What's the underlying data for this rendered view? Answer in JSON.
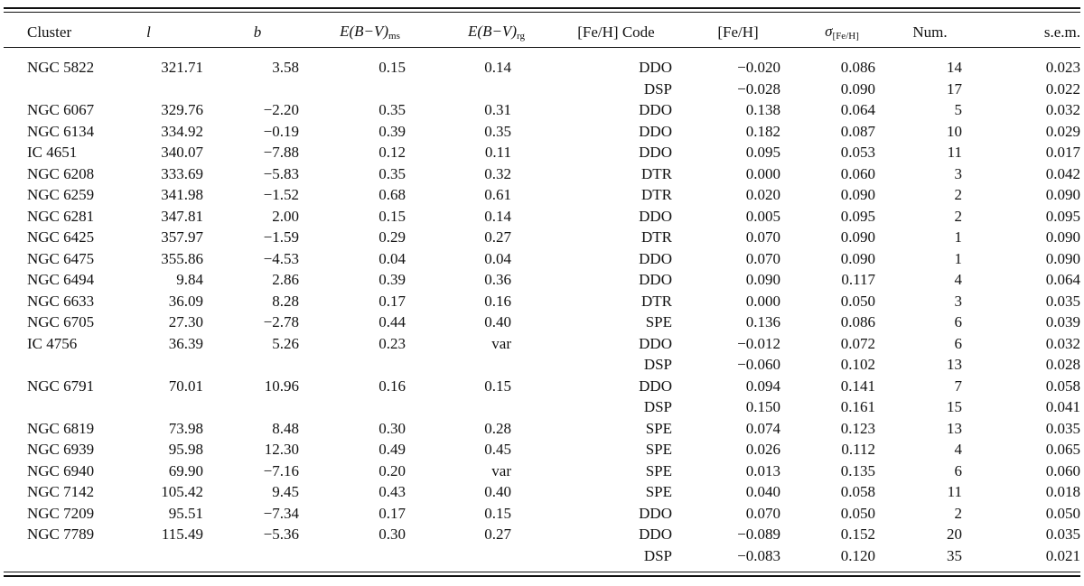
{
  "headers": {
    "cluster": "Cluster",
    "l": "l",
    "b": "b",
    "ebv_ms_main": "E(B−V)",
    "ebv_ms_sub": "ms",
    "ebv_rg_main": "E(B−V)",
    "ebv_rg_sub": "rg",
    "feh_code": "[Fe/H] Code",
    "feh": "[Fe/H]",
    "sigma_main": "σ",
    "sigma_sub": "[Fe/H]",
    "num": "Num.",
    "sem": "s.e.m."
  },
  "rows": [
    {
      "cluster": "NGC 5822",
      "l": "321.71",
      "b": "3.58",
      "ebv_ms": "0.15",
      "ebv_rg": "0.14",
      "code": "DDO",
      "feh": "−0.020",
      "sigma": "0.086",
      "num": "14",
      "sem": "0.023"
    },
    {
      "cluster": "",
      "l": "",
      "b": "",
      "ebv_ms": "",
      "ebv_rg": "",
      "code": "DSP",
      "feh": "−0.028",
      "sigma": "0.090",
      "num": "17",
      "sem": "0.022"
    },
    {
      "cluster": "NGC 6067",
      "l": "329.76",
      "b": "−2.20",
      "ebv_ms": "0.35",
      "ebv_rg": "0.31",
      "code": "DDO",
      "feh": "0.138",
      "sigma": "0.064",
      "num": "5",
      "sem": "0.032"
    },
    {
      "cluster": "NGC 6134",
      "l": "334.92",
      "b": "−0.19",
      "ebv_ms": "0.39",
      "ebv_rg": "0.35",
      "code": "DDO",
      "feh": "0.182",
      "sigma": "0.087",
      "num": "10",
      "sem": "0.029"
    },
    {
      "cluster": "IC 4651",
      "l": "340.07",
      "b": "−7.88",
      "ebv_ms": "0.12",
      "ebv_rg": "0.11",
      "code": "DDO",
      "feh": "0.095",
      "sigma": "0.053",
      "num": "11",
      "sem": "0.017"
    },
    {
      "cluster": "NGC 6208",
      "l": "333.69",
      "b": "−5.83",
      "ebv_ms": "0.35",
      "ebv_rg": "0.32",
      "code": "DTR",
      "feh": "0.000",
      "sigma": "0.060",
      "num": "3",
      "sem": "0.042"
    },
    {
      "cluster": "NGC 6259",
      "l": "341.98",
      "b": "−1.52",
      "ebv_ms": "0.68",
      "ebv_rg": "0.61",
      "code": "DTR",
      "feh": "0.020",
      "sigma": "0.090",
      "num": "2",
      "sem": "0.090"
    },
    {
      "cluster": "NGC 6281",
      "l": "347.81",
      "b": "2.00",
      "ebv_ms": "0.15",
      "ebv_rg": "0.14",
      "code": "DDO",
      "feh": "0.005",
      "sigma": "0.095",
      "num": "2",
      "sem": "0.095"
    },
    {
      "cluster": "NGC 6425",
      "l": "357.97",
      "b": "−1.59",
      "ebv_ms": "0.29",
      "ebv_rg": "0.27",
      "code": "DTR",
      "feh": "0.070",
      "sigma": "0.090",
      "num": "1",
      "sem": "0.090"
    },
    {
      "cluster": "NGC 6475",
      "l": "355.86",
      "b": "−4.53",
      "ebv_ms": "0.04",
      "ebv_rg": "0.04",
      "code": "DDO",
      "feh": "0.070",
      "sigma": "0.090",
      "num": "1",
      "sem": "0.090"
    },
    {
      "cluster": "NGC 6494",
      "l": "9.84",
      "b": "2.86",
      "ebv_ms": "0.39",
      "ebv_rg": "0.36",
      "code": "DDO",
      "feh": "0.090",
      "sigma": "0.117",
      "num": "4",
      "sem": "0.064"
    },
    {
      "cluster": "NGC 6633",
      "l": "36.09",
      "b": "8.28",
      "ebv_ms": "0.17",
      "ebv_rg": "0.16",
      "code": "DTR",
      "feh": "0.000",
      "sigma": "0.050",
      "num": "3",
      "sem": "0.035"
    },
    {
      "cluster": "NGC 6705",
      "l": "27.30",
      "b": "−2.78",
      "ebv_ms": "0.44",
      "ebv_rg": "0.40",
      "code": "SPE",
      "feh": "0.136",
      "sigma": "0.086",
      "num": "6",
      "sem": "0.039"
    },
    {
      "cluster": "IC 4756",
      "l": "36.39",
      "b": "5.26",
      "ebv_ms": "0.23",
      "ebv_rg": "var",
      "code": "DDO",
      "feh": "−0.012",
      "sigma": "0.072",
      "num": "6",
      "sem": "0.032"
    },
    {
      "cluster": "",
      "l": "",
      "b": "",
      "ebv_ms": "",
      "ebv_rg": "",
      "code": "DSP",
      "feh": "−0.060",
      "sigma": "0.102",
      "num": "13",
      "sem": "0.028"
    },
    {
      "cluster": "NGC 6791",
      "l": "70.01",
      "b": "10.96",
      "ebv_ms": "0.16",
      "ebv_rg": "0.15",
      "code": "DDO",
      "feh": "0.094",
      "sigma": "0.141",
      "num": "7",
      "sem": "0.058"
    },
    {
      "cluster": "",
      "l": "",
      "b": "",
      "ebv_ms": "",
      "ebv_rg": "",
      "code": "DSP",
      "feh": "0.150",
      "sigma": "0.161",
      "num": "15",
      "sem": "0.041"
    },
    {
      "cluster": "NGC 6819",
      "l": "73.98",
      "b": "8.48",
      "ebv_ms": "0.30",
      "ebv_rg": "0.28",
      "code": "SPE",
      "feh": "0.074",
      "sigma": "0.123",
      "num": "13",
      "sem": "0.035"
    },
    {
      "cluster": "NGC 6939",
      "l": "95.98",
      "b": "12.30",
      "ebv_ms": "0.49",
      "ebv_rg": "0.45",
      "code": "SPE",
      "feh": "0.026",
      "sigma": "0.112",
      "num": "4",
      "sem": "0.065"
    },
    {
      "cluster": "NGC 6940",
      "l": "69.90",
      "b": "−7.16",
      "ebv_ms": "0.20",
      "ebv_rg": "var",
      "code": "SPE",
      "feh": "0.013",
      "sigma": "0.135",
      "num": "6",
      "sem": "0.060"
    },
    {
      "cluster": "NGC 7142",
      "l": "105.42",
      "b": "9.45",
      "ebv_ms": "0.43",
      "ebv_rg": "0.40",
      "code": "SPE",
      "feh": "0.040",
      "sigma": "0.058",
      "num": "11",
      "sem": "0.018"
    },
    {
      "cluster": "NGC 7209",
      "l": "95.51",
      "b": "−7.34",
      "ebv_ms": "0.17",
      "ebv_rg": "0.15",
      "code": "DDO",
      "feh": "0.070",
      "sigma": "0.050",
      "num": "2",
      "sem": "0.050"
    },
    {
      "cluster": "NGC 7789",
      "l": "115.49",
      "b": "−5.36",
      "ebv_ms": "0.30",
      "ebv_rg": "0.27",
      "code": "DDO",
      "feh": "−0.089",
      "sigma": "0.152",
      "num": "20",
      "sem": "0.035"
    },
    {
      "cluster": "",
      "l": "",
      "b": "",
      "ebv_ms": "",
      "ebv_rg": "",
      "code": "DSP",
      "feh": "−0.083",
      "sigma": "0.120",
      "num": "35",
      "sem": "0.021"
    }
  ]
}
